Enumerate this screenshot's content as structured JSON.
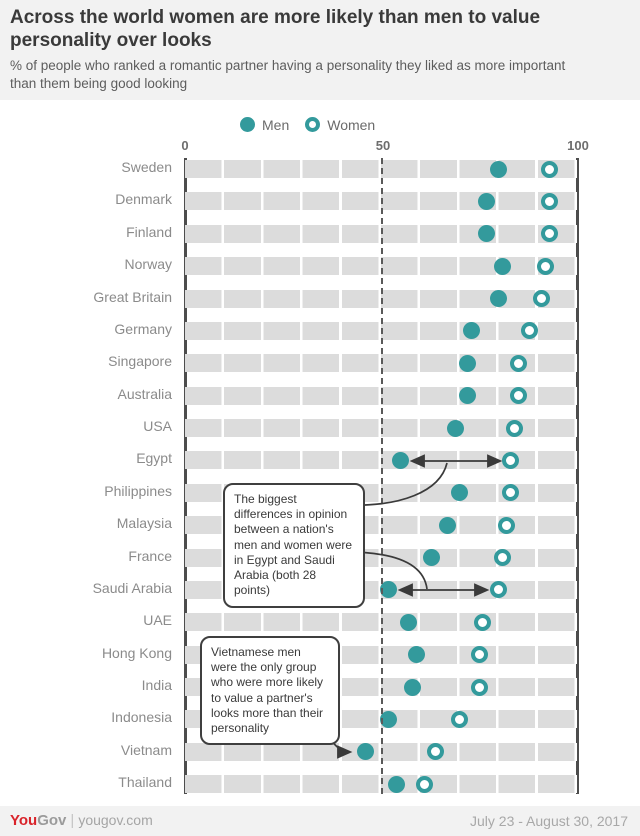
{
  "header": {
    "title": "Across the world women are more likely than men to value personality over looks",
    "subtitle": "% of people who ranked a romantic partner having a personality they liked as more important than them being good looking"
  },
  "legend": {
    "men_label": "Men",
    "women_label": "Women"
  },
  "axis": {
    "ticks": [
      "0",
      "50",
      "100"
    ],
    "min": 0,
    "max": 100,
    "reference_line": 50
  },
  "chart_data": {
    "type": "scatter",
    "subtype": "dumbbell-dot-plot",
    "categories": [
      "Sweden",
      "Denmark",
      "Finland",
      "Norway",
      "Great Britain",
      "Germany",
      "Singapore",
      "Australia",
      "USA",
      "Egypt",
      "Philippines",
      "Malaysia",
      "France",
      "Saudi Arabia",
      "UAE",
      "Hong Kong",
      "India",
      "Indonesia",
      "Vietnam",
      "Thailand"
    ],
    "series": [
      {
        "name": "Men",
        "values": [
          80,
          77,
          77,
          81,
          80,
          73,
          72,
          72,
          69,
          55,
          70,
          67,
          63,
          52,
          57,
          59,
          58,
          52,
          46,
          54
        ]
      },
      {
        "name": "Women",
        "values": [
          93,
          93,
          93,
          92,
          91,
          88,
          85,
          85,
          84,
          83,
          83,
          82,
          81,
          80,
          76,
          75,
          75,
          70,
          64,
          61
        ]
      }
    ],
    "xlim": [
      0,
      100
    ],
    "grid": "vertical-gaps-every-10",
    "legend_position": "top",
    "title": "Across the world women are more likely than men to value personality over looks",
    "xlabel": "",
    "ylabel": ""
  },
  "annotations": [
    {
      "text": "The biggest differences in opinion between a nation's men and women were in Egypt and Saudi Arabia (both 28 points)"
    },
    {
      "text": "Vietnamese men were the only group who were more likely to value a partner's looks more than their personality"
    }
  ],
  "footer": {
    "brand_you": "You",
    "brand_gov": "Gov",
    "divider": "|",
    "site": "yougov.com",
    "date_range": "July 23 - August 30, 2017"
  },
  "colors": {
    "teal": "#339a9c",
    "stripe_gray": "#dcdcdc",
    "band_bg": "#f2f2f2",
    "panel_bg": "#ffffff",
    "axis_line": "#4d4d4d",
    "arrow": "#3a3a3a",
    "brand_red": "#d9232a"
  }
}
